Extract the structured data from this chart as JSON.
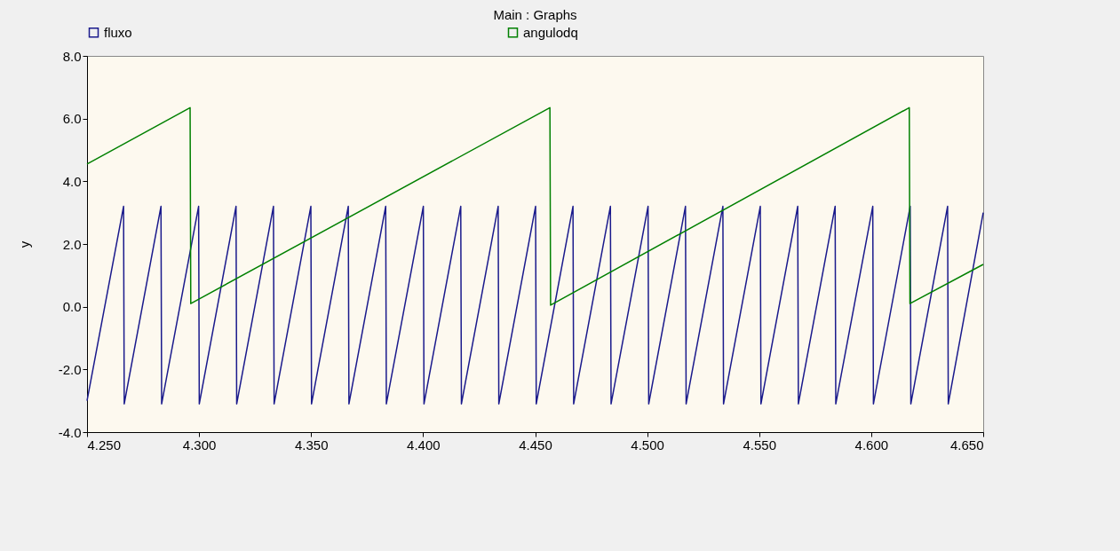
{
  "chart_data": {
    "type": "line",
    "title": "Main : Graphs",
    "ylabel": "y",
    "xlim": [
      4.25,
      4.65
    ],
    "ylim": [
      -4,
      8
    ],
    "xticks": [
      {
        "value": 4.25,
        "label": "4.250"
      },
      {
        "value": 4.3,
        "label": "4.300"
      },
      {
        "value": 4.35,
        "label": "4.350"
      },
      {
        "value": 4.4,
        "label": "4.400"
      },
      {
        "value": 4.45,
        "label": "4.450"
      },
      {
        "value": 4.5,
        "label": "4.500"
      },
      {
        "value": 4.55,
        "label": "4.550"
      },
      {
        "value": 4.6,
        "label": "4.600"
      },
      {
        "value": 4.65,
        "label": "4.650"
      }
    ],
    "yticks": [
      {
        "value": -4,
        "label": "-4.0"
      },
      {
        "value": -2,
        "label": "-2.0"
      },
      {
        "value": 0,
        "label": "0.0"
      },
      {
        "value": 2,
        "label": "2.0"
      },
      {
        "value": 4,
        "label": "4.0"
      },
      {
        "value": 6,
        "label": "6.0"
      },
      {
        "value": 8,
        "label": "8.0"
      }
    ],
    "grid": false,
    "legend": "top",
    "line_style": "solid",
    "marker": "none",
    "series": [
      {
        "name": "fluxo",
        "color": "#1a1a8c",
        "x": [
          4.25,
          4.2663,
          4.2666,
          4.283,
          4.2833,
          4.2998,
          4.3001,
          4.3165,
          4.3168,
          4.3332,
          4.3335,
          4.3499,
          4.3502,
          4.3666,
          4.3669,
          4.3833,
          4.3836,
          4.4001,
          4.4004,
          4.4168,
          4.4171,
          4.4335,
          4.4338,
          4.4502,
          4.4505,
          4.4669,
          4.4672,
          4.4836,
          4.4839,
          4.5004,
          4.5007,
          4.5171,
          4.5174,
          4.5338,
          4.5341,
          4.5505,
          4.5508,
          4.5672,
          4.5675,
          4.5839,
          4.5842,
          4.6007,
          4.601,
          4.6174,
          4.6177,
          4.6341,
          4.6344,
          4.65
        ],
        "values": [
          -3.0,
          3.2,
          -3.1,
          3.2,
          -3.1,
          3.2,
          -3.1,
          3.2,
          -3.1,
          3.2,
          -3.1,
          3.2,
          -3.1,
          3.2,
          -3.1,
          3.2,
          -3.1,
          3.2,
          -3.1,
          3.2,
          -3.1,
          3.2,
          -3.1,
          3.2,
          -3.1,
          3.2,
          -3.1,
          3.2,
          -3.1,
          3.2,
          -3.1,
          3.2,
          -3.1,
          3.2,
          -3.1,
          3.2,
          -3.1,
          3.2,
          -3.1,
          3.2,
          -3.1,
          3.2,
          -3.1,
          3.2,
          -3.1,
          3.2,
          -3.1,
          3.0
        ]
      },
      {
        "name": "angulodq",
        "color": "#008000",
        "x": [
          4.25,
          4.296,
          4.2963,
          4.4566,
          4.4569,
          4.617,
          4.6173,
          4.65
        ],
        "values": [
          4.55,
          6.35,
          0.1,
          6.35,
          0.05,
          6.35,
          0.1,
          1.35
        ]
      }
    ]
  }
}
